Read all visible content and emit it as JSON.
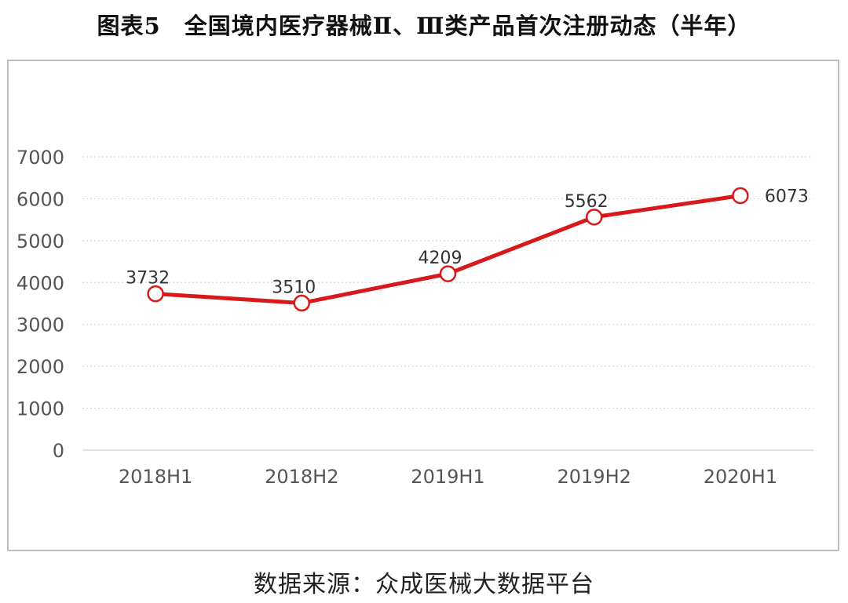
{
  "figure": {
    "title": "图表5　全国境内医疗器械Ⅱ、Ⅲ类产品首次注册动态（半年）",
    "source": "数据来源：众成医械大数据平台"
  },
  "chart_data": {
    "type": "line",
    "categories": [
      "2018H1",
      "2018H2",
      "2019H1",
      "2019H2",
      "2020H1"
    ],
    "series": [
      {
        "values": [
          3732,
          3510,
          4209,
          5562,
          6073
        ],
        "color": "#d7191c"
      }
    ],
    "ylim": [
      0,
      7000
    ],
    "yticks": [
      0,
      1000,
      2000,
      3000,
      4000,
      5000,
      6000,
      7000
    ],
    "grid": true,
    "legend": "none",
    "data_labels": true
  }
}
